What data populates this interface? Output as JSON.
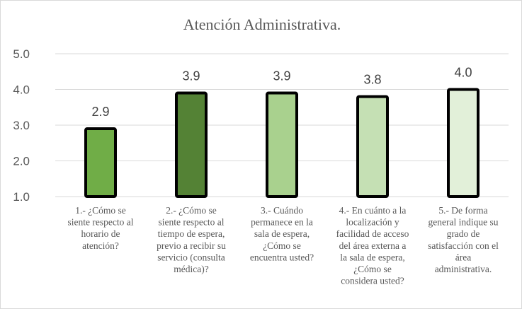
{
  "chart_data": {
    "type": "bar",
    "title": "Atención Administrativa.",
    "xlabel": "",
    "ylabel": "",
    "ylim": [
      1.0,
      5.0
    ],
    "yticks": [
      "1.0",
      "2.0",
      "3.0",
      "4.0",
      "5.0"
    ],
    "grid": true,
    "categories": [
      [
        "1.- ¿Cómo se",
        "siente respecto al",
        "horario de",
        "atención?"
      ],
      [
        "2.- ¿Cómo se",
        "siente respecto al",
        "tiempo de espera,",
        "previo a recibir su",
        "servicio (consulta",
        "médica)?"
      ],
      [
        "3.- Cuándo",
        "permanece en la",
        "sala de espera,",
        "¿Cómo se",
        "encuentra usted?"
      ],
      [
        "4.- En cuánto a la",
        "localización y",
        "facilidad de acceso",
        "del área externa a",
        "la sala de espera,",
        "¿Cómo se",
        "considera usted?"
      ],
      [
        "5.- De forma",
        "general indique su",
        "grado de",
        "satisfacción con el",
        "área",
        "administrativa."
      ]
    ],
    "values": [
      2.9,
      3.9,
      3.9,
      3.8,
      4.0
    ],
    "data_labels": [
      "2.9",
      "3.9",
      "3.9",
      "3.8",
      "4.0"
    ],
    "colors": [
      "#70ad47",
      "#548235",
      "#a9d18e",
      "#c5e0b4",
      "#e2f0d9"
    ],
    "border_color": "#000000"
  }
}
